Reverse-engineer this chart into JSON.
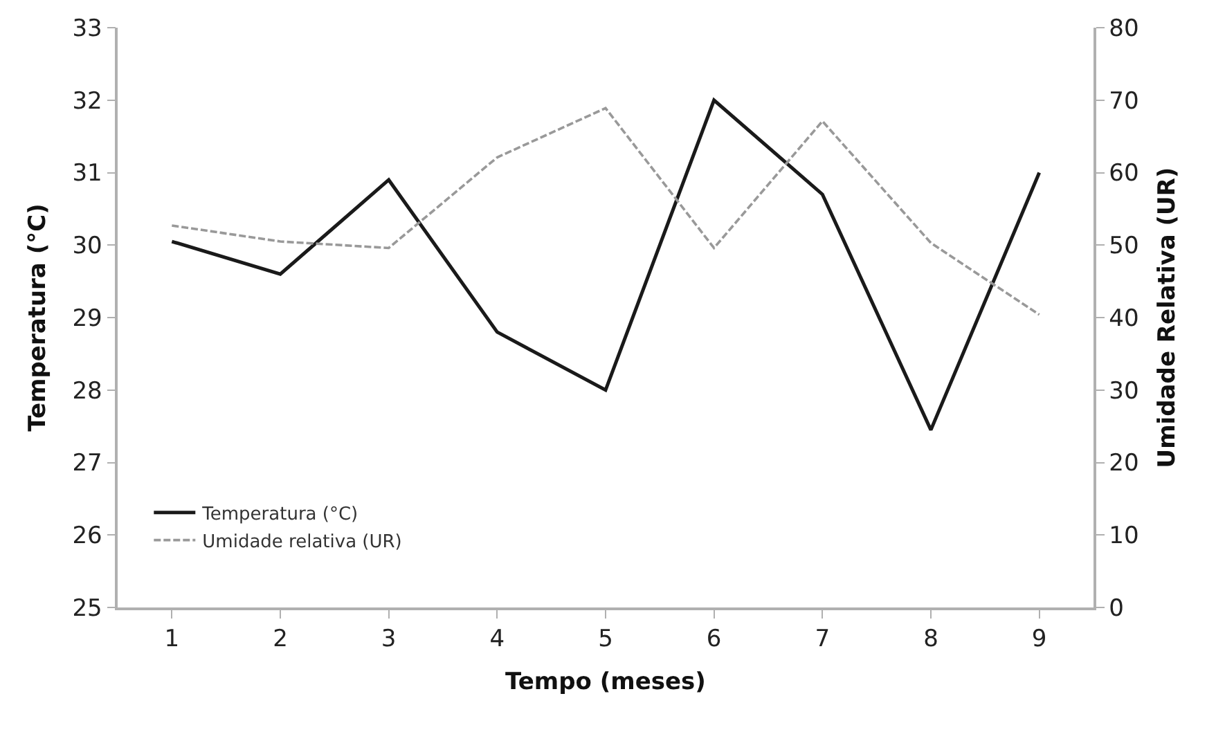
{
  "chart_data": {
    "type": "line",
    "xlabel": "Tempo (meses)",
    "ylabel": "Temperatura (°C)",
    "y2label": "Umidade Relativa (UR)",
    "categories": [
      "1",
      "2",
      "3",
      "4",
      "5",
      "6",
      "7",
      "8",
      "9"
    ],
    "series": [
      {
        "name": "Temperatura (°C)",
        "color": "#1a1a1a",
        "line_style": "solid",
        "values": [
          30.05,
          29.6,
          30.9,
          28.8,
          28.0,
          32.0,
          30.7,
          27.45,
          31.0
        ]
      },
      {
        "name": "Umidade relativa (UR)",
        "color": "#999999",
        "line_style": "dashed",
        "axis": "y2",
        "values": [
          52.7,
          50.5,
          49.6,
          62.1,
          68.9,
          49.6,
          67.1,
          50.3,
          40.4
        ]
      }
    ],
    "ylim": [
      25,
      33
    ],
    "yticks": [
      25,
      26,
      27,
      28,
      29,
      30,
      31,
      32,
      33
    ],
    "y2lim": [
      0,
      80
    ],
    "y2ticks": [
      0,
      10,
      20,
      30,
      40,
      50,
      60,
      70,
      80
    ],
    "legend": "bottom left",
    "marker": "none"
  }
}
